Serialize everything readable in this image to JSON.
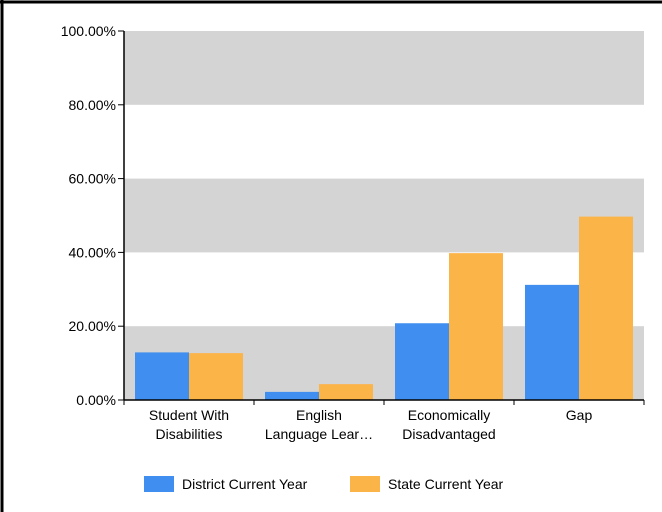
{
  "chart_data": {
    "type": "bar",
    "categories": [
      [
        "Student With",
        "Disabilities"
      ],
      [
        "English",
        "Language Lear…"
      ],
      [
        "Economically",
        "Disadvantaged"
      ],
      [
        "Gap"
      ]
    ],
    "series": [
      {
        "name": "District Current Year",
        "color": "#3f8ef0",
        "values": [
          12.9,
          2.2,
          20.8,
          31.2
        ]
      },
      {
        "name": "State Current Year",
        "color": "#fbb447",
        "values": [
          12.7,
          4.3,
          39.8,
          49.7
        ]
      }
    ],
    "ylim": [
      0,
      100
    ],
    "yticks": [
      "0.00%",
      "20.00%",
      "40.00%",
      "60.00%",
      "80.00%",
      "100.00%"
    ],
    "ytick_values": [
      0,
      20,
      40,
      60,
      80,
      100
    ],
    "band_color": "#d4d4d4",
    "grid": true,
    "legend_position": "bottom"
  }
}
